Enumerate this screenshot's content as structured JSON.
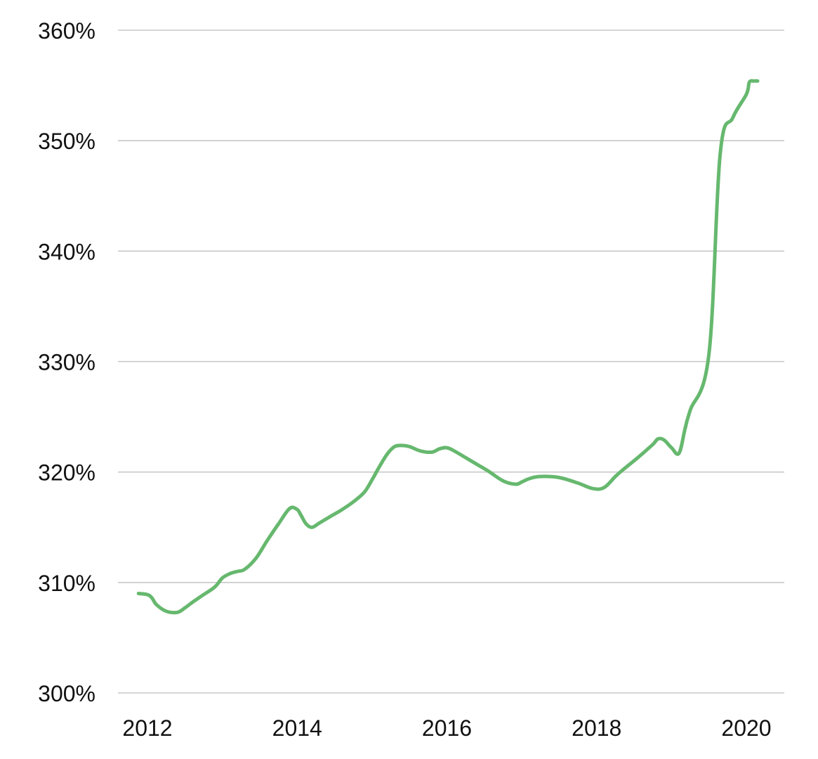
{
  "chart_data": {
    "type": "line",
    "title": "",
    "xlabel": "",
    "ylabel": "",
    "xlim": [
      2011.8,
      2020.2
    ],
    "ylim": [
      300,
      360
    ],
    "x_ticks": [
      2012,
      2014,
      2016,
      2018,
      2020
    ],
    "x_tick_labels": [
      "2012",
      "2014",
      "2016",
      "2018",
      "2020"
    ],
    "y_ticks": [
      300,
      310,
      320,
      330,
      340,
      350,
      360
    ],
    "y_tick_labels": [
      "300%",
      "310%",
      "320%",
      "330%",
      "340%",
      "350%",
      "360%"
    ],
    "grid": true,
    "legend": "none",
    "colors": {
      "line": "#66b86e",
      "grid": "#c8c8c8",
      "text": "#111111"
    },
    "series": [
      {
        "x": [
          2011.88,
          2012.0,
          2012.06,
          2012.12,
          2012.25,
          2012.4,
          2012.5,
          2012.6,
          2012.75,
          2012.9,
          2013.0,
          2013.1,
          2013.2,
          2013.3,
          2013.45,
          2013.6,
          2013.75,
          2013.9,
          2014.0,
          2014.05,
          2014.12,
          2014.2,
          2014.3,
          2014.45,
          2014.6,
          2014.75,
          2014.9,
          2015.0,
          2015.1,
          2015.2,
          2015.3,
          2015.4,
          2015.5,
          2015.65,
          2015.8,
          2015.9,
          2016.0,
          2016.1,
          2016.25,
          2016.4,
          2016.55,
          2016.75,
          2016.92,
          2017.0,
          2017.1,
          2017.25,
          2017.5,
          2017.75,
          2017.95,
          2018.1,
          2018.25,
          2018.35,
          2018.55,
          2018.75,
          2018.82,
          2018.9,
          2019.0,
          2019.1,
          2019.18,
          2019.25,
          2019.5,
          2019.65,
          2019.82,
          2020.0,
          2020.04,
          2020.1,
          2020.15
        ],
        "values": [
          309.0,
          308.9,
          308.6,
          308.0,
          307.4,
          307.3,
          307.7,
          308.2,
          308.9,
          309.6,
          310.4,
          310.8,
          311.0,
          311.2,
          312.2,
          313.8,
          315.3,
          316.7,
          316.6,
          316.1,
          315.3,
          315.0,
          315.4,
          316.0,
          316.6,
          317.3,
          318.2,
          319.3,
          320.5,
          321.6,
          322.3,
          322.4,
          322.3,
          321.9,
          321.8,
          322.1,
          322.2,
          321.9,
          321.3,
          320.7,
          320.1,
          319.2,
          318.9,
          319.1,
          319.4,
          319.6,
          319.5,
          319.0,
          318.5,
          318.6,
          319.6,
          320.2,
          321.3,
          322.5,
          323.0,
          322.9,
          322.2,
          321.7,
          323.9,
          325.6,
          330.7,
          348.8,
          352.1,
          354.2,
          355.3,
          355.4,
          355.4
        ]
      }
    ]
  }
}
